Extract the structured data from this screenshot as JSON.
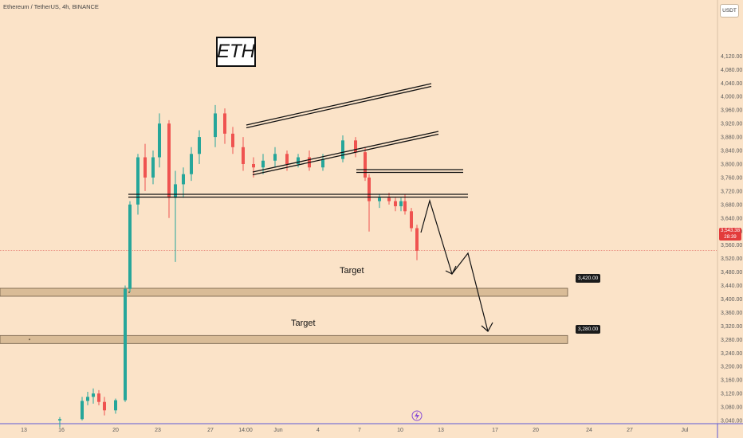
{
  "header": {
    "symbol": "Ethereum / TetherUS, 4h, BINANCE",
    "currency": "USDT"
  },
  "annotation": {
    "eth_label": "ETH",
    "target1_label": "Target",
    "target2_label": "Target"
  },
  "badges": {
    "target1_price": "3,420.00",
    "target2_price": "3,280.00",
    "last_price": "3,543.38",
    "countdown": "28:39"
  },
  "x_axis": {
    "ticks": [
      "13",
      "16",
      "20",
      "23",
      "27",
      "14:00",
      "Jun",
      "4",
      "7",
      "10",
      "13",
      "17",
      "20",
      "24",
      "27",
      "Jul"
    ]
  },
  "y_axis": {
    "ticks": [
      "3,040.00",
      "3,080.00",
      "3,120.00",
      "3,160.00",
      "3,200.00",
      "3,240.00",
      "3,280.00",
      "3,320.00",
      "3,360.00",
      "3,400.00",
      "3,440.00",
      "3,480.00",
      "3,520.00",
      "3,560.00",
      "3,600.00",
      "3,640.00",
      "3,680.00",
      "3,720.00",
      "3,760.00",
      "3,800.00",
      "3,840.00",
      "3,880.00",
      "3,920.00",
      "3,960.00",
      "4,000.00",
      "4,040.00",
      "4,080.00",
      "4,120.00"
    ]
  },
  "colors": {
    "background": "#fbe3c8",
    "up": "#26a69a",
    "down": "#ef5350",
    "zone": "#d9bc97",
    "last_price_line": "#e0625a",
    "axis_line": "#5e5ad6"
  },
  "chart_data": {
    "type": "candlestick",
    "title": "Ethereum / TetherUS, 4h, BINANCE",
    "ylim": [
      3020,
      4150
    ],
    "price_levels": {
      "last": 3543.38,
      "target_1": 3420.0,
      "target_2": 3280.0
    },
    "candles": [
      {
        "o": 3040,
        "h": 3050,
        "l": 3020,
        "c": 3044
      },
      {
        "o": 3044,
        "h": 3110,
        "l": 3040,
        "c": 3098
      },
      {
        "o": 3098,
        "h": 3125,
        "l": 3085,
        "c": 3110
      },
      {
        "o": 3110,
        "h": 3135,
        "l": 3090,
        "c": 3120
      },
      {
        "o": 3120,
        "h": 3130,
        "l": 3085,
        "c": 3095
      },
      {
        "o": 3095,
        "h": 3110,
        "l": 3055,
        "c": 3070
      },
      {
        "o": 3070,
        "h": 3105,
        "l": 3060,
        "c": 3100
      },
      {
        "o": 3100,
        "h": 3440,
        "l": 3095,
        "c": 3430
      },
      {
        "o": 3430,
        "h": 3690,
        "l": 3420,
        "c": 3680
      },
      {
        "o": 3680,
        "h": 3830,
        "l": 3650,
        "c": 3820
      },
      {
        "o": 3820,
        "h": 3860,
        "l": 3720,
        "c": 3760
      },
      {
        "o": 3760,
        "h": 3840,
        "l": 3740,
        "c": 3820
      },
      {
        "o": 3820,
        "h": 3950,
        "l": 3790,
        "c": 3920
      },
      {
        "o": 3920,
        "h": 3930,
        "l": 3640,
        "c": 3700
      },
      {
        "o": 3700,
        "h": 3780,
        "l": 3510,
        "c": 3740
      },
      {
        "o": 3740,
        "h": 3790,
        "l": 3700,
        "c": 3770
      },
      {
        "o": 3770,
        "h": 3850,
        "l": 3750,
        "c": 3830
      },
      {
        "o": 3830,
        "h": 3900,
        "l": 3800,
        "c": 3880
      },
      {
        "o": 3880,
        "h": 3975,
        "l": 3850,
        "c": 3950
      },
      {
        "o": 3950,
        "h": 3965,
        "l": 3860,
        "c": 3890
      },
      {
        "o": 3890,
        "h": 3910,
        "l": 3830,
        "c": 3850
      },
      {
        "o": 3850,
        "h": 3880,
        "l": 3780,
        "c": 3800
      },
      {
        "o": 3800,
        "h": 3820,
        "l": 3760,
        "c": 3790
      },
      {
        "o": 3790,
        "h": 3830,
        "l": 3770,
        "c": 3810
      },
      {
        "o": 3810,
        "h": 3850,
        "l": 3790,
        "c": 3830
      },
      {
        "o": 3830,
        "h": 3840,
        "l": 3780,
        "c": 3800
      },
      {
        "o": 3800,
        "h": 3830,
        "l": 3790,
        "c": 3820
      },
      {
        "o": 3820,
        "h": 3840,
        "l": 3780,
        "c": 3790
      },
      {
        "o": 3790,
        "h": 3830,
        "l": 3780,
        "c": 3815
      },
      {
        "o": 3815,
        "h": 3885,
        "l": 3805,
        "c": 3870
      },
      {
        "o": 3870,
        "h": 3880,
        "l": 3820,
        "c": 3835
      },
      {
        "o": 3835,
        "h": 3850,
        "l": 3750,
        "c": 3760
      },
      {
        "o": 3760,
        "h": 3770,
        "l": 3600,
        "c": 3690
      },
      {
        "o": 3690,
        "h": 3710,
        "l": 3670,
        "c": 3700
      },
      {
        "o": 3700,
        "h": 3715,
        "l": 3680,
        "c": 3690
      },
      {
        "o": 3690,
        "h": 3700,
        "l": 3660,
        "c": 3675
      },
      {
        "o": 3675,
        "h": 3700,
        "l": 3660,
        "c": 3690
      },
      {
        "o": 3690,
        "h": 3710,
        "l": 3650,
        "c": 3660
      },
      {
        "o": 3660,
        "h": 3670,
        "l": 3600,
        "c": 3610
      },
      {
        "o": 3610,
        "h": 3620,
        "l": 3515,
        "c": 3543
      }
    ]
  }
}
